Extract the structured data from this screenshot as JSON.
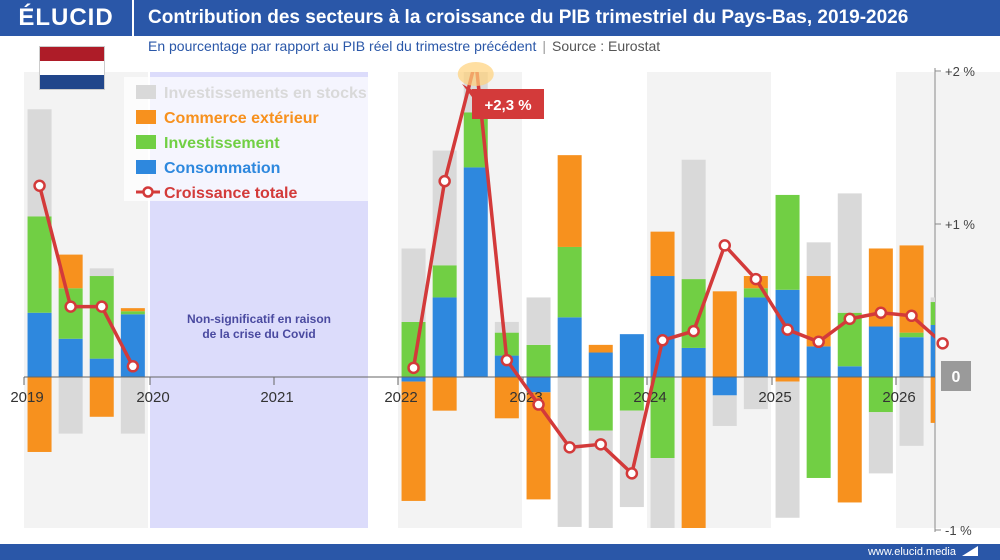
{
  "header": {
    "logo": "ÉLUCID",
    "title": "Contribution des secteurs à la croissance du PIB trimestriel du Pays-Bas, 2019-2026",
    "subtitle": "En pourcentage par rapport au PIB réel du trimestre précédent",
    "separator": "|",
    "source": "Source : Eurostat"
  },
  "footer": {
    "site": "www.elucid.media"
  },
  "flag": {
    "colors": [
      "#ae1c28",
      "#ffffff",
      "#21468b"
    ]
  },
  "annotations": {
    "covid_line1": "Non-significatif en raison",
    "covid_line2": "de la crise du Covid",
    "peak_label": "+2,3 %",
    "zero_label": "0"
  },
  "chart_data": {
    "type": "bar",
    "stacked": true,
    "ylim": [
      -1,
      2
    ],
    "yticks": [
      {
        "value": 2,
        "label": "+2 %"
      },
      {
        "value": 1,
        "label": "+1 %"
      },
      {
        "value": -1,
        "label": "-1 %"
      }
    ],
    "year_labels": [
      "2019",
      "2020",
      "2021",
      "2022",
      "2023",
      "2024",
      "2025",
      "2026"
    ],
    "covid_gap": [
      "2020",
      "2021"
    ],
    "legend_position": "top-left",
    "colors": {
      "Investissements en stocks": "#d9d9d9",
      "Commerce extérieur": "#f7911e",
      "Investissement": "#71cf44",
      "Consommation": "#2e88de",
      "Croissance totale": "#d33a3a"
    },
    "legend": [
      "Investissements en stocks",
      "Commerce extérieur",
      "Investissement",
      "Consommation",
      "Croissance totale"
    ],
    "series": [
      {
        "name": "Consommation",
        "values": [
          0.42,
          0.25,
          0.12,
          0.41,
          -0.03,
          0.52,
          1.37,
          0.14,
          -0.1,
          0.39,
          0.16,
          0.28,
          0.66,
          0.19,
          -0.12,
          0.52,
          0.57,
          0.2,
          0.07,
          0.33,
          0.26,
          0.34
        ]
      },
      {
        "name": "Investissement",
        "values": [
          0.63,
          0.33,
          0.54,
          0.02,
          0.36,
          0.21,
          0.36,
          0.15,
          0.21,
          0.46,
          -0.35,
          -0.22,
          -0.53,
          0.45,
          0.0,
          0.06,
          0.62,
          -0.66,
          0.35,
          -0.23,
          0.03,
          0.15
        ]
      },
      {
        "name": "Commerce extérieur",
        "values": [
          -0.49,
          0.22,
          -0.26,
          0.02,
          -0.78,
          -0.22,
          0.0,
          -0.27,
          -0.7,
          0.6,
          0.05,
          0.0,
          0.29,
          -1.02,
          0.56,
          0.08,
          -0.03,
          0.46,
          -0.82,
          0.51,
          0.57,
          -0.3
        ]
      },
      {
        "name": "Investissements en stocks",
        "values": [
          0.7,
          -0.37,
          0.05,
          -0.37,
          0.48,
          0.75,
          1.0,
          0.07,
          0.31,
          -0.98,
          -0.64,
          -0.63,
          -0.72,
          0.78,
          -0.2,
          -0.21,
          -0.89,
          0.22,
          0.78,
          -0.4,
          -0.45,
          0.03
        ]
      },
      {
        "name": "Croissance totale",
        "type": "line",
        "values": [
          1.25,
          0.46,
          0.46,
          0.07,
          0.06,
          1.28,
          2.3,
          0.11,
          -0.18,
          -0.46,
          -0.44,
          -0.63,
          0.24,
          0.3,
          0.86,
          0.64,
          0.31,
          0.23,
          0.38,
          0.42,
          0.4,
          0.22
        ]
      }
    ],
    "periods": [
      {
        "year": "2019",
        "q": 1
      },
      {
        "year": "2019",
        "q": 2
      },
      {
        "year": "2019",
        "q": 3
      },
      {
        "year": "2019",
        "q": 4
      },
      {
        "year": "2022",
        "q": 1
      },
      {
        "year": "2022",
        "q": 2
      },
      {
        "year": "2022",
        "q": 3
      },
      {
        "year": "2022",
        "q": 4
      },
      {
        "year": "2023",
        "q": 1
      },
      {
        "year": "2023",
        "q": 2
      },
      {
        "year": "2023",
        "q": 3
      },
      {
        "year": "2023",
        "q": 4
      },
      {
        "year": "2024",
        "q": 1
      },
      {
        "year": "2024",
        "q": 2
      },
      {
        "year": "2024",
        "q": 3
      },
      {
        "year": "2024",
        "q": 4
      },
      {
        "year": "2025",
        "q": 1
      },
      {
        "year": "2025",
        "q": 2
      },
      {
        "year": "2025",
        "q": 3
      },
      {
        "year": "2025",
        "q": 4
      },
      {
        "year": "2026",
        "q": 1
      },
      {
        "year": "2026",
        "q": 2
      }
    ]
  }
}
